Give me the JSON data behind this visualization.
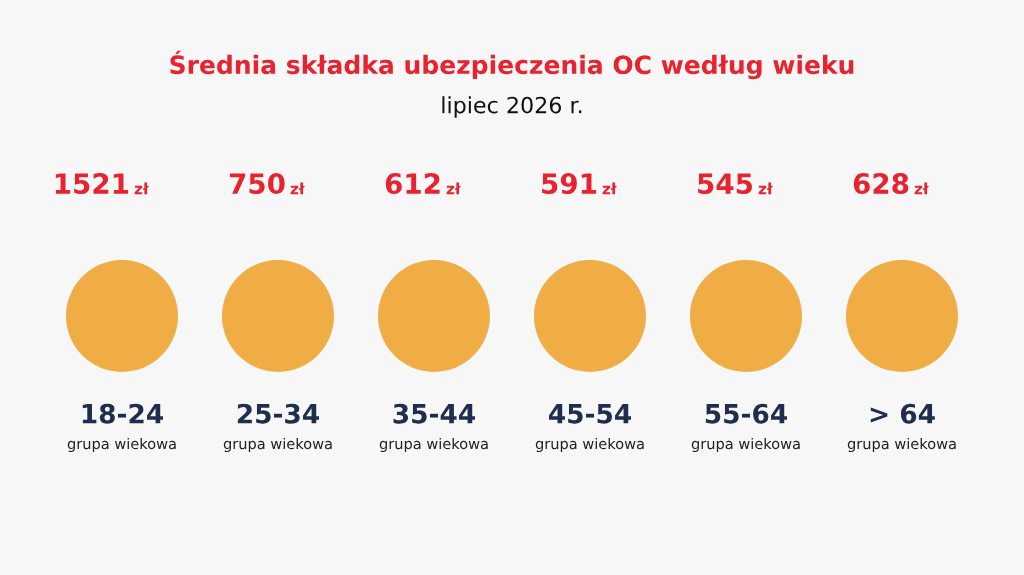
{
  "chart_data": {
    "type": "other",
    "title": "Średnia składka ubezpieczenia OC według wieku",
    "subtitle": "lipiec 2026 r.",
    "categories": [
      "18-24",
      "25-34",
      "35-44",
      "45-54",
      "55-64",
      "> 64"
    ],
    "values": [
      1521,
      750,
      612,
      591,
      545,
      628
    ],
    "value_labels": [
      "1521 zł",
      "750 zł",
      "612 zł",
      "591 zł",
      "545 zł",
      "628 zł"
    ],
    "annotations": [
      "grupa wiekowa",
      "grupa wiekowa",
      "grupa wiekowa",
      "grupa wiekowa",
      "grupa wiekowa",
      "grupa wiekowa"
    ]
  }
}
